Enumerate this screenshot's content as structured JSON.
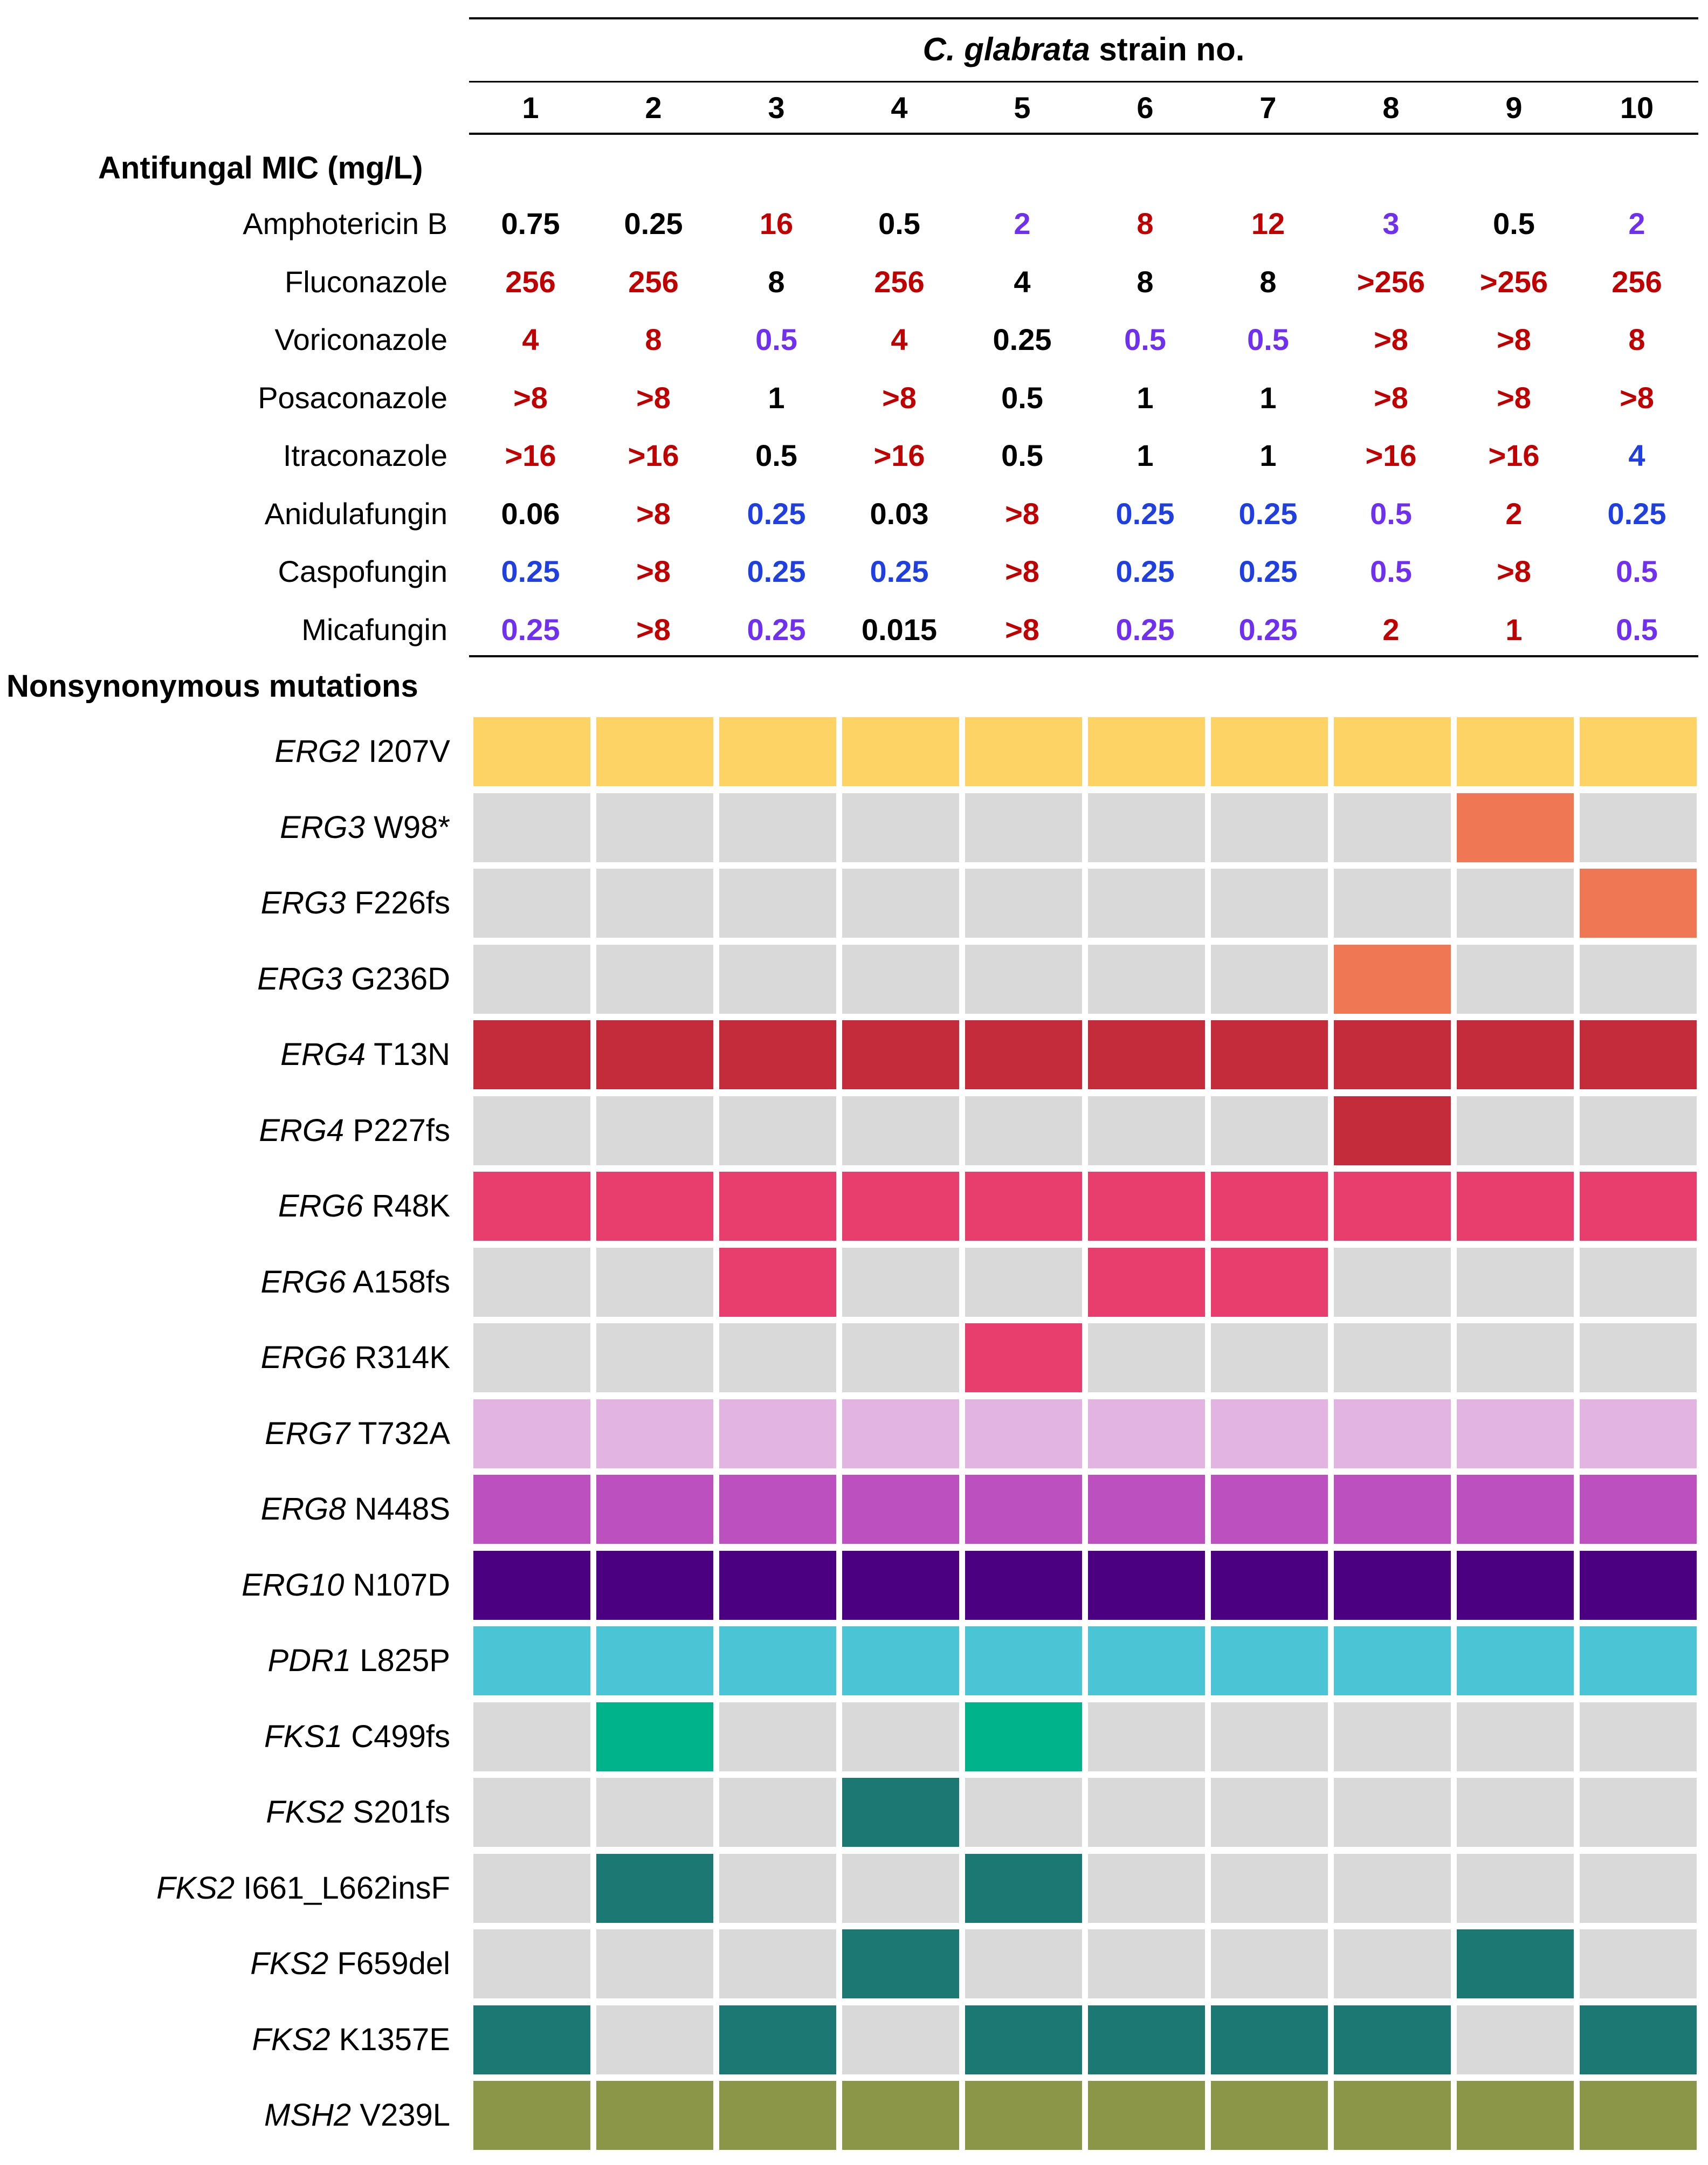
{
  "header": {
    "title_italic": "C. glabrata",
    "title_rest": " strain no.",
    "strains": [
      "1",
      "2",
      "3",
      "4",
      "5",
      "6",
      "7",
      "8",
      "9",
      "10"
    ]
  },
  "mic_section": {
    "title": "Antifungal MIC (mg/L)",
    "drugs": [
      {
        "name": "Amphotericin B",
        "values": [
          "0.75",
          "0.25",
          "16",
          "0.5",
          "2",
          "8",
          "12",
          "3",
          "0.5",
          "2"
        ],
        "colors": [
          "black",
          "black",
          "red",
          "black",
          "purple",
          "red",
          "red",
          "purple",
          "black",
          "purple"
        ]
      },
      {
        "name": "Fluconazole",
        "values": [
          "256",
          "256",
          "8",
          "256",
          "4",
          "8",
          "8",
          ">256",
          ">256",
          "256"
        ],
        "colors": [
          "red",
          "red",
          "black",
          "red",
          "black",
          "black",
          "black",
          "red",
          "red",
          "red"
        ]
      },
      {
        "name": "Voriconazole",
        "values": [
          "4",
          "8",
          "0.5",
          "4",
          "0.25",
          "0.5",
          "0.5",
          ">8",
          ">8",
          "8"
        ],
        "colors": [
          "red",
          "red",
          "purple",
          "red",
          "black",
          "purple",
          "purple",
          "red",
          "red",
          "red"
        ]
      },
      {
        "name": "Posaconazole",
        "values": [
          ">8",
          ">8",
          "1",
          ">8",
          "0.5",
          "1",
          "1",
          ">8",
          ">8",
          ">8"
        ],
        "colors": [
          "red",
          "red",
          "black",
          "red",
          "black",
          "black",
          "black",
          "red",
          "red",
          "red"
        ]
      },
      {
        "name": "Itraconazole",
        "values": [
          ">16",
          ">16",
          "0.5",
          ">16",
          "0.5",
          "1",
          "1",
          ">16",
          ">16",
          "4"
        ],
        "colors": [
          "red",
          "red",
          "black",
          "red",
          "black",
          "black",
          "black",
          "red",
          "red",
          "blue"
        ]
      },
      {
        "name": "Anidulafungin",
        "values": [
          "0.06",
          ">8",
          "0.25",
          "0.03",
          ">8",
          "0.25",
          "0.25",
          "0.5",
          "2",
          "0.25"
        ],
        "colors": [
          "black",
          "red",
          "blue",
          "black",
          "red",
          "blue",
          "blue",
          "purple",
          "red",
          "blue"
        ]
      },
      {
        "name": "Caspofungin",
        "values": [
          "0.25",
          ">8",
          "0.25",
          "0.25",
          ">8",
          "0.25",
          "0.25",
          "0.5",
          ">8",
          "0.5"
        ],
        "colors": [
          "blue",
          "red",
          "blue",
          "blue",
          "red",
          "blue",
          "blue",
          "purple",
          "red",
          "purple"
        ]
      },
      {
        "name": "Micafungin",
        "values": [
          "0.25",
          ">8",
          "0.25",
          "0.015",
          ">8",
          "0.25",
          "0.25",
          "2",
          "1",
          "0.5"
        ],
        "colors": [
          "purple",
          "red",
          "purple",
          "black",
          "red",
          "purple",
          "purple",
          "red",
          "red",
          "purple"
        ]
      }
    ]
  },
  "text_colors": {
    "black": "#000000",
    "red": "#c00000",
    "purple": "#7030f0",
    "blue": "#1f3fe0"
  },
  "mutation_section": {
    "title": "Nonsynonymous mutations",
    "absent_color": "#d9d9d9"
  },
  "chart_data": {
    "type": "heatmap",
    "title": "Nonsynonymous mutations",
    "x": [
      "1",
      "2",
      "3",
      "4",
      "5",
      "6",
      "7",
      "8",
      "9",
      "10"
    ],
    "xlabel": "C. glabrata strain no.",
    "rows": [
      {
        "gene": "ERG2",
        "mutation": "I207V",
        "color": "#fdd365",
        "present": [
          1,
          1,
          1,
          1,
          1,
          1,
          1,
          1,
          1,
          1
        ]
      },
      {
        "gene": "ERG3",
        "mutation": "W98*",
        "color": "#f07754",
        "present": [
          0,
          0,
          0,
          0,
          0,
          0,
          0,
          0,
          1,
          0
        ]
      },
      {
        "gene": "ERG3",
        "mutation": "F226fs",
        "color": "#f07754",
        "present": [
          0,
          0,
          0,
          0,
          0,
          0,
          0,
          0,
          0,
          1
        ]
      },
      {
        "gene": "ERG3",
        "mutation": "G236D",
        "color": "#f07754",
        "present": [
          0,
          0,
          0,
          0,
          0,
          0,
          0,
          1,
          0,
          0
        ]
      },
      {
        "gene": "ERG4",
        "mutation": "T13N",
        "color": "#c42b3b",
        "present": [
          1,
          1,
          1,
          1,
          1,
          1,
          1,
          1,
          1,
          1
        ]
      },
      {
        "gene": "ERG4",
        "mutation": "P227fs",
        "color": "#c42b3b",
        "present": [
          0,
          0,
          0,
          0,
          0,
          0,
          0,
          1,
          0,
          0
        ]
      },
      {
        "gene": "ERG6",
        "mutation": "R48K",
        "color": "#e83e6d",
        "present": [
          1,
          1,
          1,
          1,
          1,
          1,
          1,
          1,
          1,
          1
        ]
      },
      {
        "gene": "ERG6",
        "mutation": "A158fs",
        "color": "#e83e6d",
        "present": [
          0,
          0,
          1,
          0,
          0,
          1,
          1,
          0,
          0,
          0
        ]
      },
      {
        "gene": "ERG6",
        "mutation": "R314K",
        "color": "#e83e6d",
        "present": [
          0,
          0,
          0,
          0,
          1,
          0,
          0,
          0,
          0,
          0
        ]
      },
      {
        "gene": "ERG7",
        "mutation": "T732A",
        "color": "#e2b4e2",
        "present": [
          1,
          1,
          1,
          1,
          1,
          1,
          1,
          1,
          1,
          1
        ]
      },
      {
        "gene": "ERG8",
        "mutation": "N448S",
        "color": "#bc50be",
        "present": [
          1,
          1,
          1,
          1,
          1,
          1,
          1,
          1,
          1,
          1
        ]
      },
      {
        "gene": "ERG10",
        "mutation": "N107D",
        "color": "#4b0082",
        "present": [
          1,
          1,
          1,
          1,
          1,
          1,
          1,
          1,
          1,
          1
        ]
      },
      {
        "gene": "PDR1",
        "mutation": "L825P",
        "color": "#4bc4d6",
        "present": [
          1,
          1,
          1,
          1,
          1,
          1,
          1,
          1,
          1,
          1
        ]
      },
      {
        "gene": "FKS1",
        "mutation": "C499fs",
        "color": "#00b38b",
        "present": [
          0,
          1,
          0,
          0,
          1,
          0,
          0,
          0,
          0,
          0
        ]
      },
      {
        "gene": "FKS2",
        "mutation": "S201fs",
        "color": "#1c7873",
        "present": [
          0,
          0,
          0,
          1,
          0,
          0,
          0,
          0,
          0,
          0
        ]
      },
      {
        "gene": "FKS2",
        "mutation": "I661_L662insF",
        "color": "#1c7873",
        "present": [
          0,
          1,
          0,
          0,
          1,
          0,
          0,
          0,
          0,
          0
        ]
      },
      {
        "gene": "FKS2",
        "mutation": "F659del",
        "color": "#1c7873",
        "present": [
          0,
          0,
          0,
          1,
          0,
          0,
          0,
          0,
          1,
          0
        ]
      },
      {
        "gene": "FKS2",
        "mutation": "K1357E",
        "color": "#1c7873",
        "present": [
          1,
          0,
          1,
          0,
          1,
          1,
          1,
          1,
          0,
          1
        ]
      },
      {
        "gene": "MSH2",
        "mutation": "V239L",
        "color": "#8c9649",
        "present": [
          1,
          1,
          1,
          1,
          1,
          1,
          1,
          1,
          1,
          1
        ]
      }
    ]
  }
}
